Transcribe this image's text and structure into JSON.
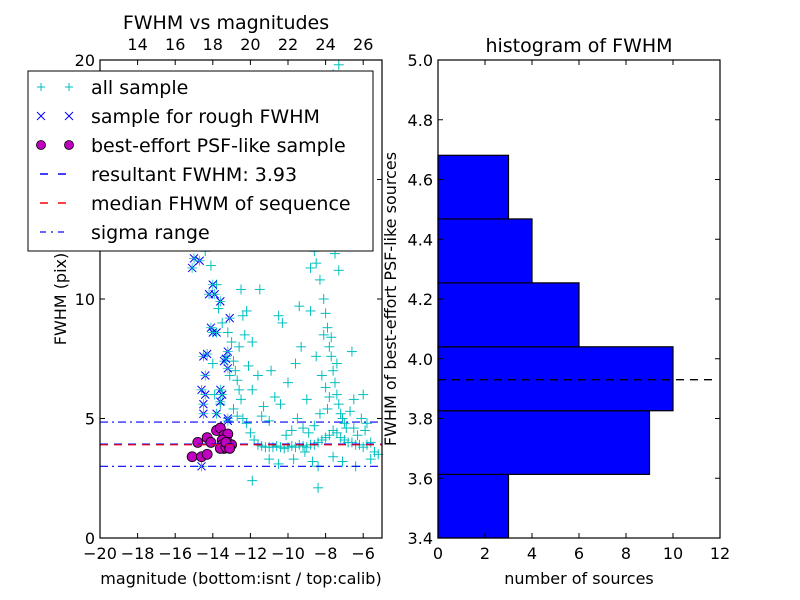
{
  "chart_data": [
    {
      "type": "scatter",
      "title": "FWHM vs magnitudes",
      "xlabel": "magnitude (bottom:isnt / top:calib)",
      "ylabel": "FWHM (pix)",
      "xlim": [
        -20,
        -5
      ],
      "ylim": [
        0,
        20
      ],
      "top_axis_offset": 32,
      "xticks": [
        -20,
        -18,
        -16,
        -14,
        -12,
        -10,
        -8,
        -6
      ],
      "xtick_labels": [
        "−20",
        "−18",
        "−16",
        "−14",
        "−12",
        "−10",
        "−8",
        "−6"
      ],
      "top_xticks": [
        14,
        16,
        18,
        20,
        22,
        24,
        26
      ],
      "top_xtick_labels": [
        "14",
        "16",
        "18",
        "20",
        "22",
        "24",
        "26"
      ],
      "yticks": [
        0,
        5,
        10,
        15,
        20
      ],
      "ytick_labels": [
        "0",
        "5",
        "10",
        "15",
        "20"
      ],
      "legend": {
        "placement": "upper-left",
        "entries": [
          {
            "label": "all sample",
            "marker": "plus",
            "color": "#00bfbf"
          },
          {
            "label": "sample for rough FWHM",
            "marker": "x",
            "color": "#0000ff"
          },
          {
            "label": "best-effort PSF-like sample",
            "marker": "circle",
            "color": "#bf00bf"
          },
          {
            "label": "resultant FWHM: 3.93",
            "line": "dashed",
            "color": "#0000ff"
          },
          {
            "label": "median FHWM of sequence",
            "line": "dashed",
            "color": "#ff0000"
          },
          {
            "label": "sigma range",
            "line": "dashdot",
            "color": "#0000ff"
          }
        ]
      },
      "hlines": [
        {
          "name": "resultant",
          "y": 3.93,
          "style": "dashed",
          "color": "#0000ff"
        },
        {
          "name": "median",
          "y": 3.9,
          "style": "dashed",
          "color": "#ff0000"
        },
        {
          "name": "sigma-upper",
          "y": 4.85,
          "style": "dashdot",
          "color": "#0000ff"
        },
        {
          "name": "sigma-lower",
          "y": 3.0,
          "style": "dashdot",
          "color": "#0000ff"
        }
      ],
      "series": [
        {
          "name": "all sample",
          "marker": "plus",
          "color": "#00bfbf",
          "points": [
            [
              -14.4,
              12.0
            ],
            [
              -13.8,
              10.6
            ],
            [
              -13.5,
              9.0
            ],
            [
              -13.2,
              8.6
            ],
            [
              -13.0,
              8.2
            ],
            [
              -12.9,
              7.4
            ],
            [
              -12.8,
              7.0
            ],
            [
              -12.7,
              6.6
            ],
            [
              -12.6,
              6.2
            ],
            [
              -12.5,
              5.8
            ],
            [
              -13.1,
              6.8
            ],
            [
              -12.9,
              5.4
            ],
            [
              -12.7,
              5.1
            ],
            [
              -12.4,
              5.0
            ],
            [
              -12.2,
              4.8
            ],
            [
              -12.0,
              4.4
            ],
            [
              -11.8,
              4.1
            ],
            [
              -11.6,
              3.9
            ],
            [
              -11.4,
              3.85
            ],
            [
              -11.2,
              3.8
            ],
            [
              -11.0,
              3.8
            ],
            [
              -10.8,
              3.8
            ],
            [
              -10.6,
              3.85
            ],
            [
              -10.4,
              3.8
            ],
            [
              -10.2,
              3.75
            ],
            [
              -10.0,
              3.8
            ],
            [
              -9.8,
              3.85
            ],
            [
              -9.6,
              3.8
            ],
            [
              -9.4,
              3.9
            ],
            [
              -9.2,
              3.85
            ],
            [
              -9.0,
              3.8
            ],
            [
              -8.8,
              3.9
            ],
            [
              -8.6,
              3.9
            ],
            [
              -8.4,
              4.0
            ],
            [
              -8.2,
              4.1
            ],
            [
              -8.0,
              4.2
            ],
            [
              -7.8,
              4.3
            ],
            [
              -7.6,
              4.5
            ],
            [
              -7.4,
              4.4
            ],
            [
              -7.2,
              4.2
            ],
            [
              -7.0,
              4.1
            ],
            [
              -6.8,
              4.0
            ],
            [
              -6.6,
              4.0
            ],
            [
              -6.4,
              3.9
            ],
            [
              -6.2,
              3.9
            ],
            [
              -6.0,
              3.8
            ],
            [
              -5.8,
              3.9
            ],
            [
              -5.6,
              4.0
            ],
            [
              -5.4,
              3.6
            ],
            [
              -5.2,
              3.5
            ],
            [
              -12.4,
              9.3
            ],
            [
              -12.2,
              9.5
            ],
            [
              -11.9,
              8.2
            ],
            [
              -11.5,
              10.4
            ],
            [
              -12.5,
              10.4
            ],
            [
              -10.5,
              9.3
            ],
            [
              -10.3,
              9.0
            ],
            [
              -10.0,
              6.5
            ],
            [
              -9.6,
              7.3
            ],
            [
              -9.3,
              8.0
            ],
            [
              -9.0,
              5.8
            ],
            [
              -8.8,
              11.3
            ],
            [
              -8.5,
              11.5
            ],
            [
              -8.3,
              10.8
            ],
            [
              -8.1,
              10.0
            ],
            [
              -8.0,
              9.4
            ],
            [
              -7.9,
              8.8
            ],
            [
              -7.8,
              8.0
            ],
            [
              -7.7,
              7.6
            ],
            [
              -7.6,
              7.0
            ],
            [
              -7.5,
              6.5
            ],
            [
              -7.4,
              6.0
            ],
            [
              -7.3,
              5.6
            ],
            [
              -7.2,
              5.2
            ],
            [
              -7.1,
              5.0
            ],
            [
              -7.0,
              4.8
            ],
            [
              -6.9,
              4.6
            ],
            [
              -6.7,
              5.3
            ],
            [
              -6.6,
              7.8
            ],
            [
              -6.5,
              4.6
            ],
            [
              -6.3,
              4.3
            ],
            [
              -6.1,
              5.0
            ],
            [
              -5.9,
              4.5
            ],
            [
              -8.5,
              7.6
            ],
            [
              -8.2,
              6.8
            ],
            [
              -8.0,
              6.3
            ],
            [
              -7.9,
              5.4
            ],
            [
              -7.8,
              5.9
            ],
            [
              -8.3,
              5.2
            ],
            [
              -8.6,
              4.7
            ],
            [
              -8.9,
              4.4
            ],
            [
              -9.2,
              4.6
            ],
            [
              -9.5,
              5.0
            ],
            [
              -9.8,
              4.5
            ],
            [
              -10.1,
              4.3
            ],
            [
              -10.4,
              5.6
            ],
            [
              -10.7,
              5.9
            ],
            [
              -11.0,
              4.9
            ],
            [
              -11.3,
              5.5
            ],
            [
              -11.6,
              6.8
            ],
            [
              -11.9,
              6.2
            ],
            [
              -12.1,
              7.2
            ],
            [
              -12.3,
              8.5
            ],
            [
              -12.6,
              8.0
            ],
            [
              -11.0,
              3.3
            ],
            [
              -10.5,
              3.1
            ],
            [
              -9.7,
              3.3
            ],
            [
              -9.1,
              3.6
            ],
            [
              -8.7,
              3.2
            ],
            [
              -8.4,
              3.0
            ],
            [
              -7.6,
              3.4
            ],
            [
              -7.1,
              3.2
            ],
            [
              -6.4,
              3.0
            ],
            [
              -5.6,
              3.3
            ],
            [
              -11.9,
              2.4
            ],
            [
              -8.4,
              2.1
            ],
            [
              -7.3,
              11.2
            ],
            [
              -7.0,
              12.5
            ],
            [
              -7.2,
              13.0
            ],
            [
              -7.5,
              11.9
            ],
            [
              -6.3,
              12.8
            ],
            [
              -8.6,
              12.0
            ],
            [
              -9.9,
              12.4
            ],
            [
              -7.3,
              19.8
            ],
            [
              -7.6,
              19.4
            ],
            [
              -5.8,
              4.8
            ],
            [
              -6.0,
              6.0
            ],
            [
              -6.5,
              5.8
            ],
            [
              -7.4,
              7.3
            ],
            [
              -7.7,
              8.4
            ],
            [
              -8.1,
              8.5
            ],
            [
              -8.8,
              9.5
            ],
            [
              -9.4,
              9.7
            ],
            [
              -10.9,
              7.0
            ],
            [
              -11.4,
              5.1
            ],
            [
              -13.3,
              7.6
            ],
            [
              -13.6,
              5.6
            ],
            [
              -13.9,
              6.0
            ],
            [
              -14.0,
              7.3
            ],
            [
              -13.7,
              9.6
            ],
            [
              -14.1,
              11.4
            ],
            [
              -12.8,
              12.2
            ]
          ]
        },
        {
          "name": "sample for rough FWHM",
          "marker": "x",
          "color": "#0000ff",
          "points": [
            [
              -15.1,
              11.3
            ],
            [
              -15.0,
              11.7
            ],
            [
              -14.7,
              11.6
            ],
            [
              -14.0,
              10.6
            ],
            [
              -14.2,
              10.2
            ],
            [
              -13.9,
              10.2
            ],
            [
              -13.6,
              9.9
            ],
            [
              -13.1,
              9.2
            ],
            [
              -14.1,
              8.8
            ],
            [
              -14.0,
              8.6
            ],
            [
              -13.8,
              8.6
            ],
            [
              -14.5,
              7.6
            ],
            [
              -14.3,
              7.7
            ],
            [
              -13.4,
              7.4
            ],
            [
              -13.3,
              7.5
            ],
            [
              -13.2,
              7.8
            ],
            [
              -13.2,
              7.1
            ],
            [
              -14.4,
              6.8
            ],
            [
              -14.6,
              6.2
            ],
            [
              -14.4,
              6.0
            ],
            [
              -13.6,
              6.2
            ],
            [
              -13.5,
              6.0
            ],
            [
              -13.6,
              5.7
            ],
            [
              -14.5,
              5.6
            ],
            [
              -14.5,
              5.2
            ],
            [
              -13.8,
              5.2
            ],
            [
              -13.2,
              5.0
            ],
            [
              -13.2,
              4.9
            ],
            [
              -14.6,
              3.0
            ]
          ]
        },
        {
          "name": "best-effort PSF-like sample",
          "marker": "circle",
          "color": "#bf00bf",
          "points": [
            [
              -15.1,
              3.4
            ],
            [
              -14.6,
              3.4
            ],
            [
              -14.3,
              3.5
            ],
            [
              -14.8,
              4.0
            ],
            [
              -14.3,
              4.2
            ],
            [
              -14.1,
              4.0
            ],
            [
              -13.8,
              4.5
            ],
            [
              -13.6,
              4.6
            ],
            [
              -13.4,
              4.3
            ],
            [
              -13.2,
              4.35
            ],
            [
              -13.5,
              4.1
            ],
            [
              -13.5,
              3.9
            ],
            [
              -13.4,
              3.75
            ],
            [
              -13.6,
              3.75
            ],
            [
              -13.3,
              3.8
            ],
            [
              -13.1,
              3.8
            ],
            [
              -13.2,
              4.0
            ],
            [
              -13.0,
              3.9
            ],
            [
              -13.3,
              4.0
            ],
            [
              -13.1,
              3.75
            ]
          ]
        }
      ]
    },
    {
      "type": "bar",
      "orientation": "horizontal",
      "title": "histogram of FWHM",
      "xlabel": "number of sources",
      "ylabel": "FWHM of best-effort PSF-like sources",
      "xlim": [
        0,
        12
      ],
      "ylim": [
        3.4,
        5.0
      ],
      "xticks": [
        0,
        2,
        4,
        6,
        8,
        10,
        12
      ],
      "xtick_labels": [
        "0",
        "2",
        "4",
        "6",
        "8",
        "10",
        "12"
      ],
      "yticks": [
        3.4,
        3.6,
        3.8,
        4.0,
        4.2,
        4.4,
        4.6,
        4.8,
        5.0
      ],
      "ytick_labels": [
        "3.4",
        "3.6",
        "3.8",
        "4.0",
        "4.2",
        "4.4",
        "4.6",
        "4.8",
        "5.0"
      ],
      "bin_edges": [
        3.4,
        3.613,
        3.826,
        4.04,
        4.254,
        4.468,
        4.681
      ],
      "values": [
        3,
        9,
        10,
        6,
        4,
        3
      ],
      "bar_color": "#0000ff",
      "hline": {
        "y": 3.93,
        "style": "dashed",
        "color": "#000000"
      }
    }
  ]
}
